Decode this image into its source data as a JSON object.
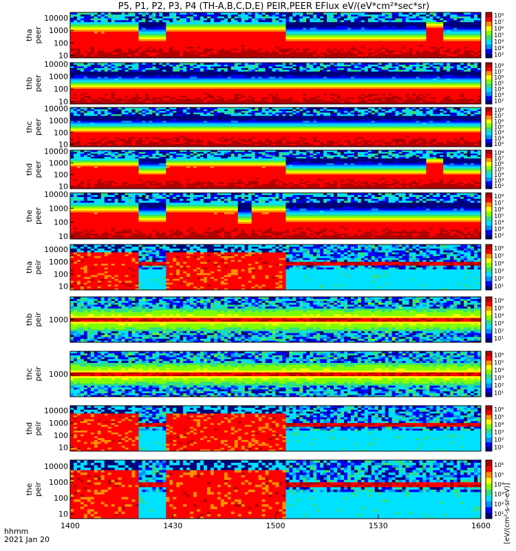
{
  "title": "P5, P1, P2, P3, P4 (TH-A,B,C,D,E) PEIR,PEER EFlux eV/(eV*cm²*sec*sr)",
  "chart_data": {
    "type": "heatmap",
    "x_ticks": [
      "1400",
      "1430",
      "1500",
      "1530",
      "1600"
    ],
    "x_tick_minutes": [
      0,
      30,
      60,
      90,
      120
    ],
    "x_range_minutes": [
      0,
      120
    ],
    "x_footer_labels": [
      "hhmm",
      "2021 Jan 20"
    ],
    "colorbar_unit_label": "[eV/(cm²-s-sr-eV)]",
    "colormap": [
      "#00007a",
      "#0000ff",
      "#0090ff",
      "#00e0ff",
      "#30e080",
      "#80ff00",
      "#ffff00",
      "#ff9000",
      "#ff0000",
      "#b00000"
    ],
    "panels": [
      {
        "probe": "tha",
        "species": "peer",
        "y_ticks": [
          "10",
          "100",
          "1000",
          "10000"
        ],
        "y_log_range": [
          0.8,
          4.45
        ],
        "cb_ticks": [
          "10²",
          "10³",
          "10⁴",
          "10⁵",
          "10⁶",
          "10⁷",
          "10⁸"
        ]
      },
      {
        "probe": "thb",
        "species": "peer",
        "y_ticks": [
          "10",
          "100",
          "1000",
          "10000"
        ],
        "y_log_range": [
          0.8,
          4.1
        ],
        "cb_ticks": [
          "10²",
          "10³",
          "10⁴",
          "10⁵",
          "10⁶",
          "10⁷",
          "10⁸"
        ]
      },
      {
        "probe": "thc",
        "species": "peer",
        "y_ticks": [
          "10",
          "100",
          "1000",
          "10000"
        ],
        "y_log_range": [
          0.8,
          4.1
        ],
        "cb_ticks": [
          "10²",
          "10³",
          "10⁴",
          "10⁵",
          "10⁶",
          "10⁷",
          "10⁸"
        ]
      },
      {
        "probe": "thd",
        "species": "peer",
        "y_ticks": [
          "10",
          "100",
          "1000",
          "10000"
        ],
        "y_log_range": [
          0.8,
          4.1
        ],
        "cb_ticks": [
          "10²",
          "10³",
          "10⁴",
          "10⁵",
          "10⁶",
          "10⁷",
          "10⁸"
        ]
      },
      {
        "probe": "the",
        "species": "peer",
        "y_ticks": [
          "10",
          "100",
          "1000",
          "10000"
        ],
        "y_log_range": [
          0.8,
          4.1
        ],
        "cb_ticks": [
          "10²",
          "10³",
          "10⁴",
          "10⁵",
          "10⁶",
          "10⁷",
          "10⁸"
        ]
      },
      {
        "probe": "tha",
        "species": "peir",
        "y_ticks": [
          "10",
          "100",
          "1000",
          "10000"
        ],
        "y_log_range": [
          0.7,
          4.4
        ],
        "cb_ticks": [
          "10¹",
          "10²",
          "10³",
          "10⁴",
          "10⁵",
          "10⁶"
        ]
      },
      {
        "probe": "thb",
        "species": "peir",
        "y_ticks": [
          "1000"
        ],
        "y_log_range": [
          2.0,
          4.0
        ],
        "cb_ticks": [
          "10¹",
          "10²",
          "10³",
          "10⁴",
          "10⁵",
          "10⁶"
        ]
      },
      {
        "probe": "thc",
        "species": "peir",
        "y_ticks": [
          "1000"
        ],
        "y_log_range": [
          2.0,
          4.0
        ],
        "cb_ticks": [
          "10¹",
          "10²",
          "10³",
          "10⁴",
          "10⁵",
          "10⁶"
        ]
      },
      {
        "probe": "thd",
        "species": "peir",
        "y_ticks": [
          "10",
          "100",
          "1000",
          "10000"
        ],
        "y_log_range": [
          0.7,
          4.4
        ],
        "cb_ticks": [
          "10¹",
          "10²",
          "10³",
          "10⁴",
          "10⁵",
          "10⁶"
        ]
      },
      {
        "probe": "the",
        "species": "peir",
        "y_ticks": [
          "10",
          "100",
          "1000",
          "10000"
        ],
        "y_log_range": [
          0.7,
          4.4
        ],
        "cb_ticks": [
          "10¹",
          "10²",
          "10³",
          "10⁴",
          "10⁵",
          "10⁶"
        ]
      }
    ]
  }
}
